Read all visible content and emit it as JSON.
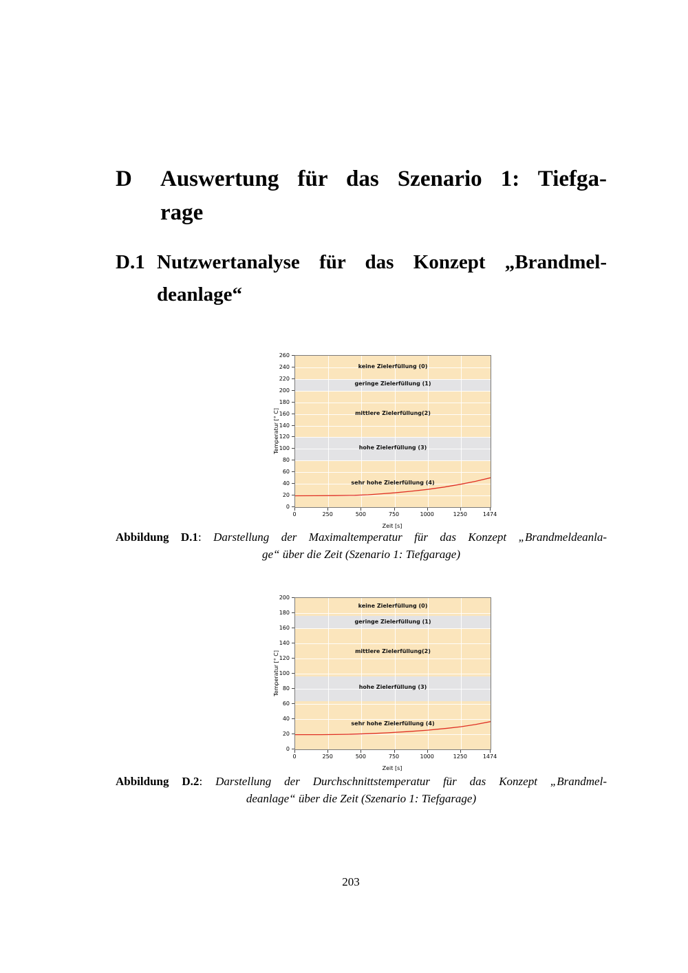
{
  "page": {
    "number": "203"
  },
  "headings": {
    "chapter": {
      "label": "D",
      "line1": "Auswertung für das Szenario 1: Tiefga-",
      "line2": "rage"
    },
    "section": {
      "label": "D.1",
      "line1": "Nutzwertanalyse für das Konzept „Brandmel-",
      "line2": "deanlage“"
    }
  },
  "captions": [
    {
      "tag": "Abbildung D.1",
      "sep": ": ",
      "line1": "Darstellung der Maximaltemperatur für das Konzept „Brandmeldeanla-",
      "line2": "ge“ über die Zeit (Szenario 1: Tiefgarage)"
    },
    {
      "tag": "Abbildung D.2",
      "sep": ": ",
      "line1": "Darstellung der Durchschnittstemperatur für das Konzept „Brandmel-",
      "line2": "deanlage“ über die Zeit (Szenario 1: Tiefgarage)"
    }
  ],
  "chart_data": [
    {
      "type": "line",
      "title": "",
      "xlabel": "Zeit [s]",
      "ylabel": "Temperatur [° C]",
      "xlim": [
        0,
        1474
      ],
      "ylim": [
        0,
        260
      ],
      "xticks": [
        0,
        250,
        500,
        750,
        1000,
        1250,
        1474
      ],
      "ytick_step": 20,
      "grid": true,
      "gridline_color": "#ffffff",
      "bands": [
        {
          "label": "keine Zielerfüllung (0)",
          "from": 220,
          "to": 260,
          "color": "#fbe5bc",
          "label_y": 240
        },
        {
          "label": "geringe Zielerfüllung (1)",
          "from": 200,
          "to": 220,
          "color": "#e3e3e5",
          "label_y": 210
        },
        {
          "label": "mittlere Zielerfüllung(2)",
          "from": 120,
          "to": 200,
          "color": "#fbe5bc",
          "label_y": 160
        },
        {
          "label": "hohe Zielerfüllung (3)",
          "from": 80,
          "to": 120,
          "color": "#e3e3e5",
          "label_y": 100
        },
        {
          "label": "sehr hohe Zielerfüllung (4)",
          "from": 0,
          "to": 80,
          "color": "#fbe5bc",
          "label_y": 40
        }
      ],
      "series": [
        {
          "name": "Maximaltemperatur",
          "color": "#df2f23",
          "points": [
            [
              0,
              19.5
            ],
            [
              150,
              19.6
            ],
            [
              300,
              19.8
            ],
            [
              450,
              20.3
            ],
            [
              550,
              21.3
            ],
            [
              650,
              22.9
            ],
            [
              750,
              24.6
            ],
            [
              875,
              27.3
            ],
            [
              1000,
              30.5
            ],
            [
              1125,
              34.5
            ],
            [
              1250,
              39.3
            ],
            [
              1360,
              44.3
            ],
            [
              1474,
              50.5
            ]
          ]
        }
      ]
    },
    {
      "type": "line",
      "title": "",
      "xlabel": "Zeit [s]",
      "ylabel": "Temperatur [° C]",
      "xlim": [
        0,
        1474
      ],
      "ylim": [
        0,
        200
      ],
      "xticks": [
        0,
        250,
        500,
        750,
        1000,
        1250,
        1474
      ],
      "ytick_step": 20,
      "grid": true,
      "gridline_color": "#ffffff",
      "bands": [
        {
          "label": "keine Zielerfüllung (0)",
          "from": 176,
          "to": 200,
          "color": "#fbe5bc",
          "label_y": 188
        },
        {
          "label": "geringe Zielerfüllung (1)",
          "from": 160,
          "to": 176,
          "color": "#e3e3e5",
          "label_y": 167.5
        },
        {
          "label": "mittlere Zielerfüllung(2)",
          "from": 96,
          "to": 160,
          "color": "#fbe5bc",
          "label_y": 128
        },
        {
          "label": "hohe Zielerfüllung (3)",
          "from": 64,
          "to": 96,
          "color": "#e3e3e5",
          "label_y": 81
        },
        {
          "label": "sehr hohe Zielerfüllung (4)",
          "from": 0,
          "to": 64,
          "color": "#fbe5bc",
          "label_y": 33
        }
      ],
      "series": [
        {
          "name": "Durchschnittstemperatur",
          "color": "#df2f23",
          "points": [
            [
              0,
              19.5
            ],
            [
              200,
              19.5
            ],
            [
              400,
              19.9
            ],
            [
              550,
              20.7
            ],
            [
              700,
              21.9
            ],
            [
              850,
              23.5
            ],
            [
              1000,
              25.4
            ],
            [
              1150,
              27.9
            ],
            [
              1250,
              29.9
            ],
            [
              1360,
              32.8
            ],
            [
              1474,
              36.6
            ]
          ]
        }
      ]
    }
  ]
}
